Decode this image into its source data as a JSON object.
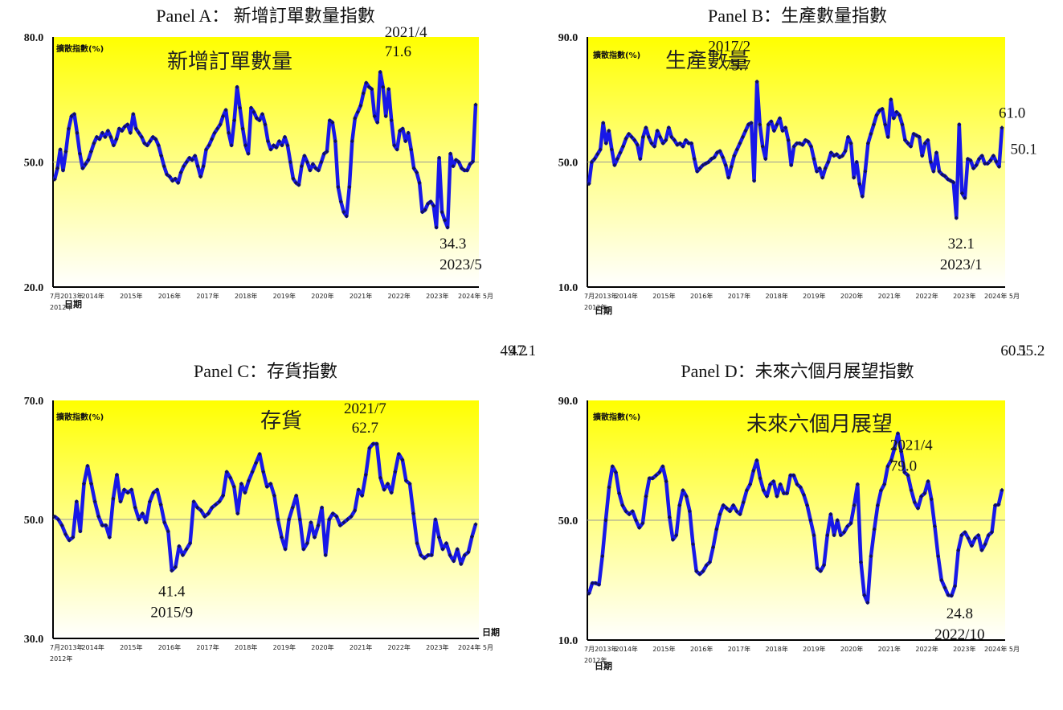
{
  "chart_data": [
    {
      "type": "line",
      "title": "Panel A： 新增訂單數量指數",
      "inner_title": "新增訂單數量",
      "ylabel": "擴散指數(%)",
      "xlabel": "日期",
      "ylim": [
        20.0,
        80.0
      ],
      "ytick_labels": [
        "80.0",
        "50.0",
        "20.0"
      ],
      "yticks": [
        80,
        50,
        20
      ],
      "reference": 50,
      "xtick_labels": [
        "7月2013年",
        "2014年",
        "2015年",
        "2016年",
        "2017年",
        "2018年",
        "2019年",
        "2020年",
        "2021年",
        "2022年",
        "2023年",
        "2024年 5月"
      ],
      "xtick_sub": "2012年",
      "series": [
        {
          "values": [
            45.8,
            48.5,
            53.0,
            48.0,
            52.5,
            58.0,
            61.0,
            61.5,
            57.0,
            52.0,
            48.5,
            49.5,
            50.5,
            52.5,
            54.5,
            56.0,
            55.5,
            57.0,
            56.0,
            57.5,
            56.0,
            54.0,
            55.5,
            58.0,
            57.5,
            58.5,
            59.0,
            57.0,
            61.5,
            58.0,
            57.0,
            56.0,
            54.5,
            54.0,
            55.0,
            56.0,
            55.5,
            54.0,
            51.5,
            49.0,
            47.0,
            46.5,
            45.5,
            46.0,
            45.0,
            47.5,
            49.0,
            50.0,
            51.0,
            50.5,
            51.5,
            49.0,
            46.5,
            49.0,
            53.0,
            54.0,
            55.5,
            57.0,
            58.0,
            59.0,
            61.0,
            62.5,
            57.0,
            54.0,
            60.0,
            68.0,
            63.0,
            58.0,
            54.0,
            52.0,
            63.0,
            62.0,
            60.5,
            60.0,
            61.5,
            59.0,
            55.0,
            53.0,
            54.0,
            53.5,
            55.0,
            54.0,
            56.0,
            54.0,
            50.0,
            46.0,
            45.0,
            44.5,
            49.0,
            51.5,
            50.0,
            48.0,
            49.5,
            48.5,
            48.0,
            50.0,
            52.0,
            52.5,
            60.0,
            59.5,
            55.0,
            44.0,
            40.5,
            38.0,
            37.0,
            44.0,
            55.0,
            60.5,
            62.0,
            63.5,
            66.5,
            69.0,
            68.0,
            67.5,
            61.0,
            59.5,
            71.6,
            68.0,
            61.0,
            67.5,
            60.0,
            54.0,
            53.0,
            57.5,
            58.0,
            55.0,
            57.0,
            53.0,
            48.5,
            47.5,
            45.0,
            38.0,
            38.5,
            40.0,
            40.5,
            39.5,
            34.3,
            51.0,
            38.0,
            36.0,
            34.3,
            52.0,
            49.0,
            50.5,
            50.0,
            48.5,
            48.0,
            48.0,
            49.5,
            50.1,
            63.8
          ],
          "line_color": "#1818e8"
        }
      ],
      "annotations": [
        {
          "label": "2021/4",
          "value": "71.6"
        },
        {
          "label": "2023/5",
          "value": "34.3"
        },
        {
          "value": "63.8"
        },
        {
          "value": "50.1"
        }
      ]
    },
    {
      "type": "line",
      "title": "Panel B：生產數量指數",
      "inner_title": "生產數量",
      "ylabel": "擴散指數(%)",
      "xlabel": "日期",
      "ylim": [
        10.0,
        90.0
      ],
      "ytick_labels": [
        "90.0",
        "50.0",
        "10.0"
      ],
      "yticks": [
        90,
        50,
        10
      ],
      "reference": 50,
      "xtick_labels": [
        "7月2013年",
        "2014年",
        "2015年",
        "2016年",
        "2017年",
        "2018年",
        "2019年",
        "2020年",
        "2021年",
        "2022年",
        "2023年",
        "2024年 5月"
      ],
      "xtick_sub": "2012年",
      "series": [
        {
          "values": [
            43.0,
            50.0,
            51.0,
            52.5,
            54.0,
            62.5,
            56.0,
            60.0,
            54.0,
            49.0,
            51.0,
            53.0,
            55.0,
            57.5,
            59.0,
            58.0,
            57.0,
            55.5,
            51.0,
            58.0,
            61.0,
            58.0,
            56.0,
            55.0,
            60.0,
            58.0,
            56.0,
            57.0,
            61.0,
            58.0,
            57.0,
            55.5,
            56.0,
            55.0,
            57.0,
            56.0,
            56.0,
            51.0,
            47.0,
            48.0,
            49.0,
            49.5,
            50.0,
            51.0,
            51.5,
            53.0,
            53.5,
            51.5,
            49.0,
            45.0,
            48.5,
            52.0,
            54.0,
            56.0,
            58.0,
            60.0,
            62.0,
            62.5,
            44.0,
            75.7,
            62.0,
            55.0,
            51.0,
            62.0,
            63.0,
            60.0,
            62.0,
            64.0,
            60.0,
            61.0,
            57.0,
            49.0,
            55.0,
            56.0,
            56.0,
            55.5,
            57.0,
            56.5,
            55.0,
            51.0,
            47.0,
            48.0,
            45.0,
            48.0,
            50.0,
            53.0,
            52.0,
            52.5,
            51.5,
            52.0,
            53.5,
            58.0,
            56.0,
            45.0,
            50.0,
            43.0,
            39.0,
            47.0,
            56.0,
            59.0,
            62.0,
            65.0,
            66.5,
            67.0,
            62.0,
            58.0,
            70.0,
            64.0,
            66.0,
            65.0,
            62.0,
            57.0,
            56.0,
            55.0,
            59.0,
            58.5,
            58.0,
            52.0,
            56.0,
            57.0,
            50.0,
            47.0,
            53.0,
            47.0,
            46.0,
            45.5,
            44.5,
            44.0,
            43.5,
            32.1,
            62.0,
            40.0,
            38.5,
            51.0,
            50.5,
            48.0,
            49.0,
            51.0,
            52.0,
            49.5,
            49.5,
            50.5,
            52.0,
            50.1,
            48.5,
            61.0
          ],
          "line_color": "#1818e8"
        }
      ],
      "annotations": [
        {
          "label": "2017/2",
          "value": "75.7"
        },
        {
          "label": "2023/1",
          "value": "32.1"
        },
        {
          "value": "61.0"
        },
        {
          "value": "50.1"
        }
      ]
    },
    {
      "type": "line",
      "title": "Panel C：存貨指數",
      "inner_title": "存貨",
      "ylabel": "擴散指數(%)",
      "xlabel": "日期",
      "ylim": [
        30.0,
        70.0
      ],
      "ytick_labels": [
        "70.0",
        "50.0",
        "30.0"
      ],
      "yticks": [
        70,
        50,
        30
      ],
      "reference": 50,
      "xtick_labels": [
        "7月2013年",
        "2014年",
        "2015年",
        "2016年",
        "2017年",
        "2018年",
        "2019年",
        "2020年",
        "2021年",
        "2022年",
        "2023年",
        "2024年 5月"
      ],
      "xtick_sub": "2012年",
      "series": [
        {
          "values": [
            50.5,
            50.0,
            49.0,
            47.5,
            46.5,
            47.0,
            53.0,
            48.0,
            56.0,
            59.0,
            56.0,
            53.0,
            50.5,
            49.0,
            49.0,
            47.0,
            53.5,
            57.5,
            53.0,
            55.0,
            54.5,
            55.0,
            52.0,
            50.0,
            51.0,
            49.5,
            53.0,
            54.5,
            55.0,
            52.5,
            49.5,
            48.0,
            41.4,
            42.0,
            45.5,
            44.0,
            45.0,
            46.0,
            53.0,
            52.0,
            51.5,
            50.5,
            51.0,
            52.0,
            52.5,
            53.0,
            54.0,
            58.0,
            57.0,
            55.5,
            51.0,
            56.0,
            54.5,
            56.5,
            58.0,
            59.5,
            61.0,
            58.0,
            55.5,
            56.0,
            54.0,
            50.0,
            47.0,
            45.0,
            50.0,
            52.0,
            54.0,
            50.0,
            45.0,
            46.0,
            49.5,
            47.0,
            49.0,
            52.0,
            44.0,
            50.0,
            51.0,
            50.5,
            49.0,
            49.5,
            50.0,
            50.5,
            51.5,
            55.0,
            54.0,
            57.5,
            62.0,
            62.7,
            62.7,
            57.0,
            55.0,
            56.0,
            54.5,
            58.0,
            61.0,
            60.0,
            56.5,
            56.0,
            51.0,
            46.0,
            44.0,
            43.5,
            44.0,
            44.0,
            50.0,
            47.0,
            45.0,
            46.0,
            44.0,
            43.0,
            45.0,
            42.5,
            44.0,
            44.5,
            47.1,
            49.2
          ],
          "line_color": "#1818e8"
        }
      ],
      "annotations": [
        {
          "label": "2021/7",
          "value": "62.7"
        },
        {
          "label": "2015/9",
          "value": "41.4"
        },
        {
          "value": "49.2"
        },
        {
          "value": "47.1"
        }
      ]
    },
    {
      "type": "line",
      "title": "Panel D：未來六個月展望指數",
      "inner_title": "未來六個月展望",
      "ylabel": "擴散指數(%)",
      "xlabel": "日期",
      "ylim": [
        10.0,
        90.0
      ],
      "ytick_labels": [
        "90.0",
        "50.0",
        "10.0"
      ],
      "yticks": [
        90,
        50,
        10
      ],
      "reference": 50,
      "xtick_labels": [
        "7月2013年",
        "2014年",
        "2015年",
        "2016年",
        "2017年",
        "2018年",
        "2019年",
        "2020年",
        "2021年",
        "2022年",
        "2023年",
        "2024年 5月"
      ],
      "xtick_sub": "2012年",
      "series": [
        {
          "values": [
            25.5,
            29.0,
            29.0,
            28.5,
            38.0,
            50.0,
            61.0,
            68.0,
            66.0,
            59.0,
            55.0,
            53.0,
            52.0,
            53.0,
            50.0,
            47.5,
            49.0,
            58.0,
            64.0,
            64.0,
            65.0,
            66.0,
            68.0,
            63.0,
            51.0,
            43.5,
            45.0,
            55.0,
            60.0,
            58.0,
            53.0,
            42.0,
            33.0,
            32.0,
            33.0,
            35.0,
            36.0,
            41.0,
            47.0,
            52.0,
            55.0,
            54.0,
            53.0,
            55.0,
            53.0,
            52.0,
            56.0,
            60.0,
            62.0,
            66.5,
            70.0,
            64.0,
            60.0,
            58.0,
            62.0,
            63.0,
            58.0,
            62.0,
            59.0,
            59.0,
            65.0,
            65.0,
            62.0,
            61.0,
            58.5,
            55.0,
            50.0,
            45.0,
            34.0,
            33.0,
            35.0,
            45.0,
            52.0,
            45.0,
            50.0,
            45.0,
            46.0,
            48.0,
            49.0,
            55.0,
            62.0,
            36.0,
            25.0,
            22.5,
            38.0,
            47.0,
            55.0,
            60.0,
            62.0,
            68.0,
            70.0,
            74.0,
            79.0,
            73.0,
            66.0,
            65.0,
            60.0,
            56.0,
            54.0,
            58.0,
            59.0,
            63.0,
            57.0,
            48.0,
            38.0,
            30.0,
            27.5,
            25.0,
            24.8,
            28.0,
            40.0,
            45.0,
            46.0,
            44.0,
            41.5,
            44.0,
            45.0,
            40.0,
            42.0,
            45.0,
            46.0,
            55.0,
            55.2,
            60.1
          ],
          "line_color": "#1818e8"
        }
      ],
      "annotations": [
        {
          "label": "2021/4",
          "value": "79.0"
        },
        {
          "label": "2022/10",
          "value": "24.8"
        },
        {
          "value": "60.1"
        },
        {
          "value": "55.2"
        }
      ]
    }
  ]
}
